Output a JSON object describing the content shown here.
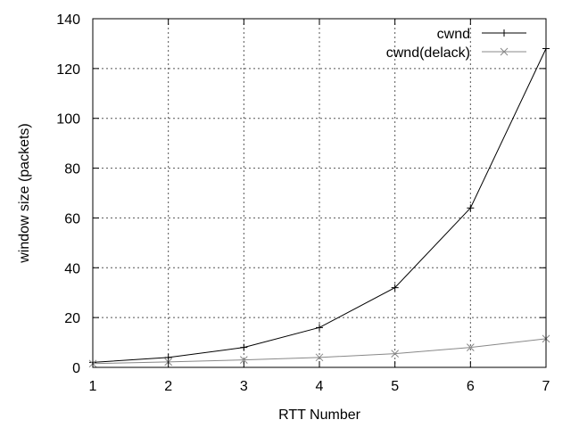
{
  "chart_data": {
    "type": "line",
    "xlabel": "RTT Number",
    "ylabel": "window size (packets)",
    "xlim": [
      1,
      7
    ],
    "ylim": [
      0,
      140
    ],
    "xticks": [
      1,
      2,
      3,
      4,
      5,
      6,
      7
    ],
    "yticks": [
      0,
      20,
      40,
      60,
      80,
      100,
      120,
      140
    ],
    "grid": true,
    "legend_position": "top-right",
    "series": [
      {
        "name": "cwnd",
        "marker": "plus",
        "color": "#000000",
        "x": [
          1,
          2,
          3,
          4,
          5,
          6,
          7
        ],
        "y": [
          2,
          4,
          8,
          16,
          32,
          64,
          128
        ]
      },
      {
        "name": "cwnd(delack)",
        "marker": "cross",
        "color": "#888888",
        "x": [
          1,
          2,
          3,
          4,
          5,
          6,
          7
        ],
        "y": [
          1.5,
          2.2,
          3,
          4,
          5.5,
          8,
          11.5
        ]
      }
    ]
  }
}
